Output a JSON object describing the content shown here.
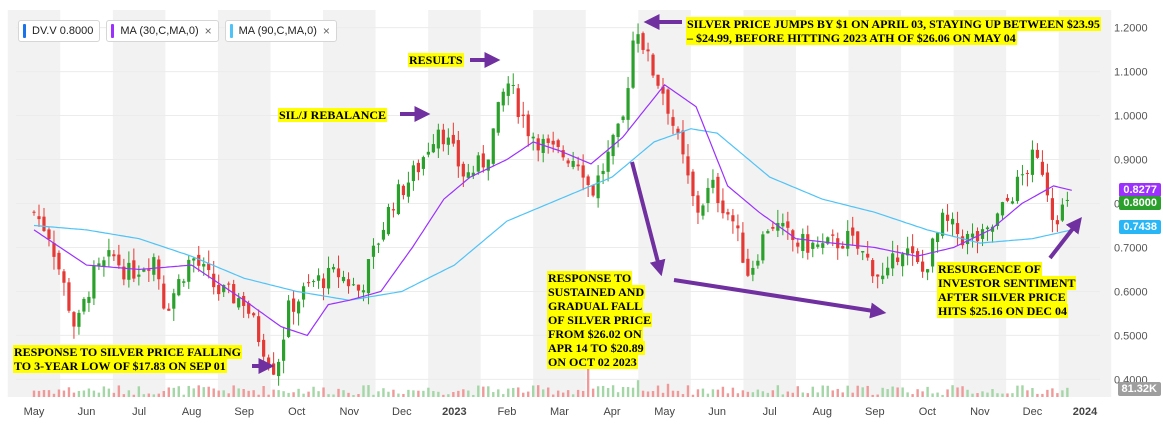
{
  "legend": [
    {
      "label": "DV.V  0.8000",
      "color": "#1a73e8",
      "closable": false
    },
    {
      "label": "MA (30,C,MA,0)",
      "color": "#9b30ff",
      "closable": true
    },
    {
      "label": "MA (90,C,MA,0)",
      "color": "#4fc3f7",
      "closable": true
    }
  ],
  "close_glyph": "×",
  "annotations": {
    "silver_jump": "SILVER PRICE JUMPS BY $1 ON APRIL 03, STAYING UP BETWEEN $23.95 – $24.99, BEFORE HITTING 2023 ATH OF $26.06 ON MAY 04",
    "results": "RESULTS",
    "rebalance": "SIL/J REBALANCE",
    "low": "RESPONSE TO SILVER PRICE FALLING TO 3-YEAR LOW OF $17.83 ON SEP 01",
    "sustained": "RESPONSE TO SUSTAINED AND GRADUAL FALL OF SILVER PRICE FROM $26.02 ON APR 14 TO $20.89 ON OCT 02 2023",
    "resurgence": "RESURGENCE OF INVESTOR SENTIMENT AFTER SILVER PRICE HITS $25.16 ON DEC 04"
  },
  "price_tags": {
    "ma30": {
      "label": "0.8277",
      "value": 0.8277,
      "color": "#9b30ff"
    },
    "last": {
      "label": "0.8000",
      "value": 0.8,
      "color": "#2ca02c"
    },
    "ma90": {
      "label": "0.7438",
      "value": 0.7438,
      "color": "#29b6f6"
    },
    "volume": {
      "label": "81.32K",
      "color": "#9e9e9e"
    }
  },
  "colors": {
    "up": "#2ca02c",
    "down": "#e53935",
    "ma30": "#9b30ff",
    "ma90": "#4fc3f7",
    "arrow": "#7030a0",
    "band": "#f2f2f2"
  },
  "chart_data": {
    "type": "candlestick",
    "y_axis": {
      "ticks": [
        "1.2000",
        "1.1000",
        "1.0000",
        "0.9000",
        "0.8000",
        "0.7000",
        "0.6000",
        "0.5000",
        "0.4000"
      ],
      "ylim": [
        0.36,
        1.24
      ]
    },
    "x_axis": {
      "labels": [
        "May",
        "Jun",
        "Jul",
        "Aug",
        "Sep",
        "Oct",
        "Nov",
        "Dec",
        "2023",
        "Feb",
        "Mar",
        "Apr",
        "May",
        "Jun",
        "Jul",
        "Aug",
        "Sep",
        "Oct",
        "Nov",
        "Dec",
        "2024"
      ]
    },
    "price_knots": [
      [
        0,
        0.78
      ],
      [
        0.3,
        0.73
      ],
      [
        0.8,
        0.51
      ],
      [
        1.1,
        0.63
      ],
      [
        1.5,
        0.68
      ],
      [
        1.8,
        0.64
      ],
      [
        2.3,
        0.68
      ],
      [
        2.5,
        0.56
      ],
      [
        3.0,
        0.68
      ],
      [
        3.5,
        0.6
      ],
      [
        4.0,
        0.58
      ],
      [
        4.3,
        0.49
      ],
      [
        4.6,
        0.42
      ],
      [
        4.85,
        0.56
      ],
      [
        5.3,
        0.62
      ],
      [
        5.8,
        0.64
      ],
      [
        6.2,
        0.6
      ],
      [
        6.8,
        0.8
      ],
      [
        7.3,
        0.88
      ],
      [
        7.7,
        0.98
      ],
      [
        8.2,
        0.86
      ],
      [
        8.6,
        0.9
      ],
      [
        9.0,
        1.08
      ],
      [
        9.4,
        0.97
      ],
      [
        9.8,
        0.92
      ],
      [
        10.4,
        0.9
      ],
      [
        10.6,
        0.82
      ],
      [
        10.9,
        0.9
      ],
      [
        11.2,
        0.98
      ],
      [
        11.45,
        1.22
      ],
      [
        11.7,
        1.12
      ],
      [
        12.0,
        1.05
      ],
      [
        12.3,
        0.92
      ],
      [
        12.6,
        0.78
      ],
      [
        12.9,
        0.84
      ],
      [
        13.3,
        0.76
      ],
      [
        13.6,
        0.64
      ],
      [
        14.0,
        0.76
      ],
      [
        14.5,
        0.71
      ],
      [
        15.0,
        0.7
      ],
      [
        15.5,
        0.72
      ],
      [
        15.8,
        0.68
      ],
      [
        16.2,
        0.62
      ],
      [
        16.5,
        0.71
      ],
      [
        16.9,
        0.64
      ],
      [
        17.3,
        0.76
      ],
      [
        17.7,
        0.72
      ],
      [
        18.1,
        0.72
      ],
      [
        18.6,
        0.82
      ],
      [
        19.0,
        0.9
      ],
      [
        19.2,
        0.88
      ],
      [
        19.4,
        0.77
      ],
      [
        19.6,
        0.79
      ],
      [
        19.75,
        0.8
      ]
    ],
    "ma30_knots": [
      [
        0,
        0.74
      ],
      [
        1,
        0.66
      ],
      [
        2,
        0.65
      ],
      [
        3,
        0.66
      ],
      [
        4,
        0.58
      ],
      [
        4.7,
        0.52
      ],
      [
        5.2,
        0.5
      ],
      [
        5.6,
        0.57
      ],
      [
        6,
        0.58
      ],
      [
        6.6,
        0.6
      ],
      [
        7.2,
        0.7
      ],
      [
        7.8,
        0.81
      ],
      [
        8.3,
        0.86
      ],
      [
        9,
        0.9
      ],
      [
        9.5,
        0.94
      ],
      [
        10,
        0.92
      ],
      [
        10.6,
        0.89
      ],
      [
        11.2,
        0.95
      ],
      [
        12,
        1.07
      ],
      [
        12.6,
        1.02
      ],
      [
        13.2,
        0.84
      ],
      [
        13.8,
        0.78
      ],
      [
        14.5,
        0.72
      ],
      [
        15.2,
        0.71
      ],
      [
        16,
        0.7
      ],
      [
        16.8,
        0.68
      ],
      [
        17.5,
        0.7
      ],
      [
        18.2,
        0.74
      ],
      [
        18.8,
        0.8
      ],
      [
        19.4,
        0.84
      ],
      [
        19.75,
        0.83
      ]
    ],
    "ma90_knots": [
      [
        0,
        0.75
      ],
      [
        1,
        0.74
      ],
      [
        2,
        0.72
      ],
      [
        3,
        0.68
      ],
      [
        4,
        0.63
      ],
      [
        5,
        0.6
      ],
      [
        6,
        0.58
      ],
      [
        7,
        0.6
      ],
      [
        8,
        0.66
      ],
      [
        9,
        0.76
      ],
      [
        10,
        0.81
      ],
      [
        11,
        0.86
      ],
      [
        11.8,
        0.94
      ],
      [
        12.5,
        0.97
      ],
      [
        13,
        0.96
      ],
      [
        14,
        0.86
      ],
      [
        15,
        0.81
      ],
      [
        16,
        0.78
      ],
      [
        17,
        0.74
      ],
      [
        18,
        0.71
      ],
      [
        19,
        0.72
      ],
      [
        19.75,
        0.74
      ]
    ],
    "volume_spikes": [
      [
        10.55,
        0.62
      ],
      [
        11.5,
        0.28
      ],
      [
        12.1,
        0.22
      ],
      [
        14.5,
        0.18
      ],
      [
        17.8,
        0.12
      ],
      [
        9.0,
        0.14
      ]
    ]
  }
}
